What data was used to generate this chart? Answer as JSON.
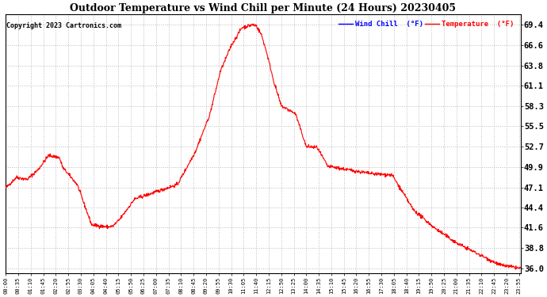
{
  "title": "Outdoor Temperature vs Wind Chill per Minute (24 Hours) 20230405",
  "copyright": "Copyright 2023 Cartronics.com",
  "legend_wind_chill": "Wind Chill  (°F)",
  "legend_temperature": "Temperature  (°F)",
  "wind_chill_color": "blue",
  "temperature_color": "red",
  "line_color": "red",
  "background_color": "white",
  "grid_color": "#bbbbbb",
  "yticks": [
    36.0,
    38.8,
    41.6,
    44.4,
    47.1,
    49.9,
    52.7,
    55.5,
    58.3,
    61.1,
    63.8,
    66.6,
    69.4
  ],
  "ymin": 35.3,
  "ymax": 70.8,
  "xtick_step": 35,
  "key_times": [
    0,
    30,
    60,
    90,
    120,
    150,
    160,
    200,
    240,
    265,
    285,
    300,
    320,
    360,
    420,
    480,
    530,
    570,
    600,
    630,
    660,
    690,
    700,
    715,
    730,
    750,
    770,
    810,
    840,
    870,
    900,
    960,
    1020,
    1080,
    1140,
    1200,
    1260,
    1320,
    1380,
    1439
  ],
  "key_values": [
    47.0,
    48.5,
    48.2,
    49.5,
    51.5,
    51.2,
    49.8,
    47.5,
    42.0,
    41.8,
    41.7,
    41.8,
    42.8,
    45.5,
    46.5,
    47.5,
    52.0,
    57.0,
    63.0,
    66.5,
    69.0,
    69.4,
    69.3,
    68.0,
    65.5,
    61.5,
    58.3,
    57.2,
    52.7,
    52.6,
    50.0,
    49.5,
    49.0,
    48.8,
    44.0,
    41.5,
    39.5,
    38.0,
    36.5,
    36.0
  ],
  "noise_seed": 42,
  "noise_std": 0.12
}
